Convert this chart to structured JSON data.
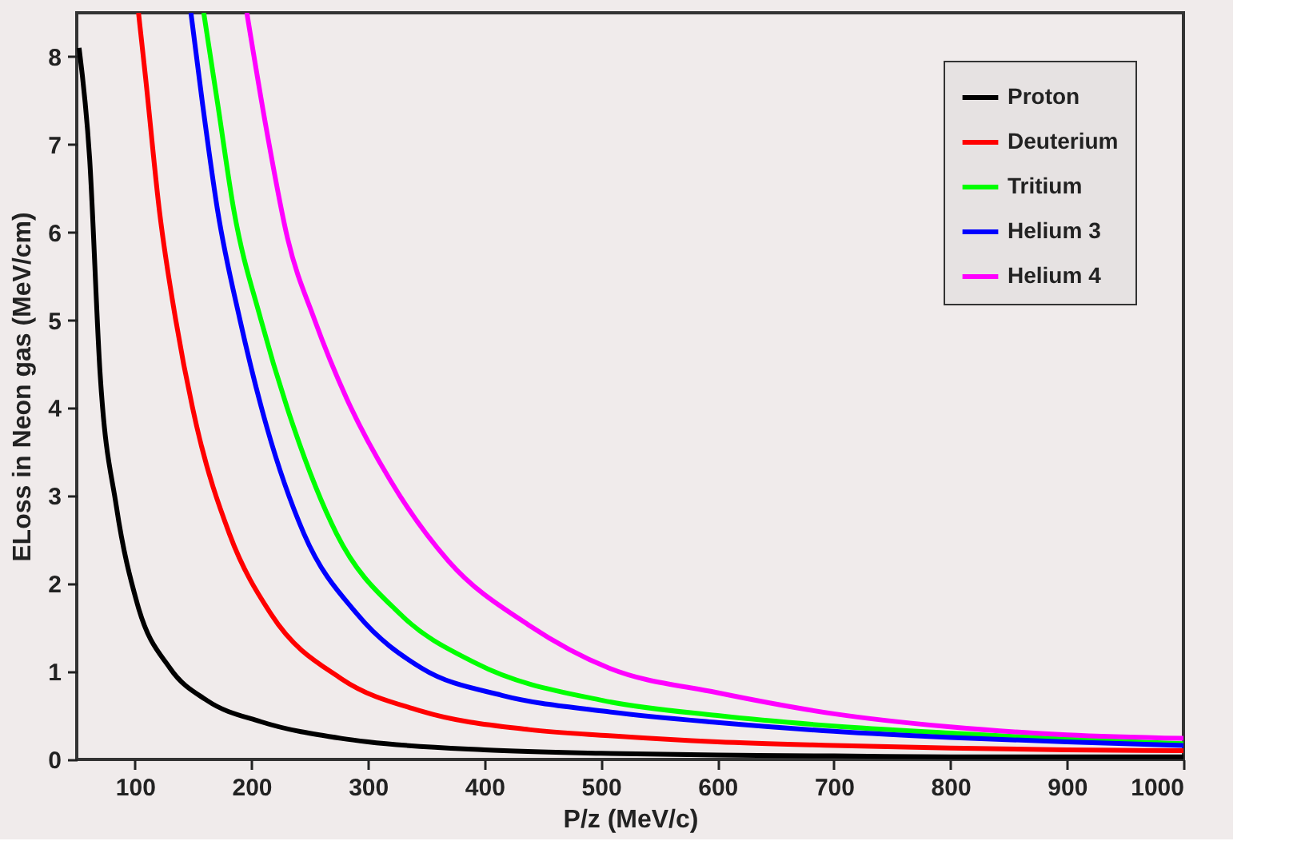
{
  "chart_data": {
    "type": "line",
    "xlabel": "P/z (MeV/c)",
    "ylabel": "ELoss in Neon gas (MeV/cm)",
    "xlim": [
      50,
      1000
    ],
    "ylim": [
      0,
      8.5
    ],
    "xticks": [
      100,
      200,
      300,
      400,
      500,
      600,
      700,
      800,
      900,
      1000
    ],
    "yticks": [
      0,
      1,
      2,
      3,
      4,
      5,
      6,
      7,
      8
    ],
    "grid": false,
    "legend": "top right",
    "marker": "none",
    "line_style": "solid",
    "series": [
      {
        "name": "Proton",
        "color": "#000000",
        "x": [
          52,
          61,
          70,
          84,
          102,
          130,
          162,
          208,
          277,
          300,
          400,
          500,
          600,
          700,
          800,
          900,
          1000
        ],
        "values": [
          8.1,
          6.85,
          4.4,
          2.88,
          1.77,
          1.04,
          0.67,
          0.43,
          0.24,
          0.2,
          0.11,
          0.07,
          0.05,
          0.04,
          0.03,
          0.03,
          0.03
        ]
      },
      {
        "name": "Deuterium",
        "color": "#ff0000",
        "x": [
          103,
          109,
          121,
          135,
          153,
          181,
          217,
          277,
          346,
          438,
          507,
          600,
          700,
          800,
          900,
          1000
        ],
        "values": [
          8.5,
          7.77,
          6.24,
          5.0,
          3.79,
          2.57,
          1.65,
          0.92,
          0.55,
          0.34,
          0.27,
          0.2,
          0.16,
          0.13,
          0.11,
          0.1
        ]
      },
      {
        "name": "Tritium",
        "color": "#00ff00",
        "x": [
          159,
          171,
          185,
          208,
          236,
          273,
          328,
          392,
          502,
          600,
          700,
          800,
          900,
          1000
        ],
        "values": [
          8.5,
          7.46,
          6.24,
          5.01,
          3.79,
          2.57,
          1.65,
          1.1,
          0.67,
          0.5,
          0.38,
          0.3,
          0.23,
          0.18
        ]
      },
      {
        "name": "Helium 3",
        "color": "#0000ff",
        "x": [
          148,
          158,
          171,
          190,
          213,
          245,
          291,
          346,
          415,
          502,
          600,
          700,
          800,
          900,
          1000
        ],
        "values": [
          8.5,
          7.46,
          6.24,
          5.01,
          3.79,
          2.57,
          1.65,
          1.04,
          0.73,
          0.55,
          0.42,
          0.32,
          0.25,
          0.2,
          0.16
        ]
      },
      {
        "name": "Helium 4",
        "color": "#ff00ff",
        "x": [
          196,
          213,
          231,
          254,
          282,
          319,
          369,
          438,
          507,
          600,
          700,
          800,
          900,
          1000
        ],
        "values": [
          8.5,
          7.16,
          5.93,
          5.01,
          4.1,
          3.18,
          2.26,
          1.53,
          1.04,
          0.76,
          0.52,
          0.37,
          0.28,
          0.24
        ]
      }
    ]
  }
}
